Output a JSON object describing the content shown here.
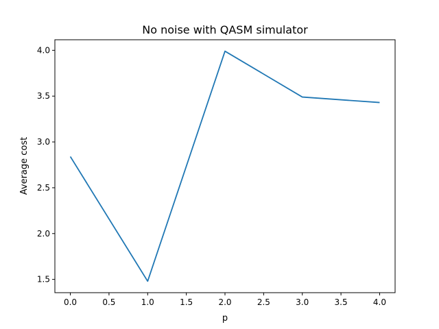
{
  "chart_data": {
    "type": "line",
    "title": "No noise with QASM simulator",
    "xlabel": "p",
    "ylabel": "Average cost",
    "x": [
      0,
      1,
      2,
      3,
      4
    ],
    "series": [
      {
        "values": [
          2.84,
          1.48,
          3.99,
          3.49,
          3.43
        ],
        "color": "#1f77b4"
      }
    ],
    "xlim": [
      -0.2,
      4.2
    ],
    "ylim": [
      1.355,
      4.115
    ],
    "xticks": [
      0.0,
      0.5,
      1.0,
      1.5,
      2.0,
      2.5,
      3.0,
      3.5,
      4.0
    ],
    "xtick_labels": [
      "0.0",
      "0.5",
      "1.0",
      "1.5",
      "2.0",
      "2.5",
      "3.0",
      "3.5",
      "4.0"
    ],
    "yticks": [
      1.5,
      2.0,
      2.5,
      3.0,
      3.5,
      4.0
    ],
    "ytick_labels": [
      "1.5",
      "2.0",
      "2.5",
      "3.0",
      "3.5",
      "4.0"
    ],
    "grid": false,
    "legend": false
  }
}
